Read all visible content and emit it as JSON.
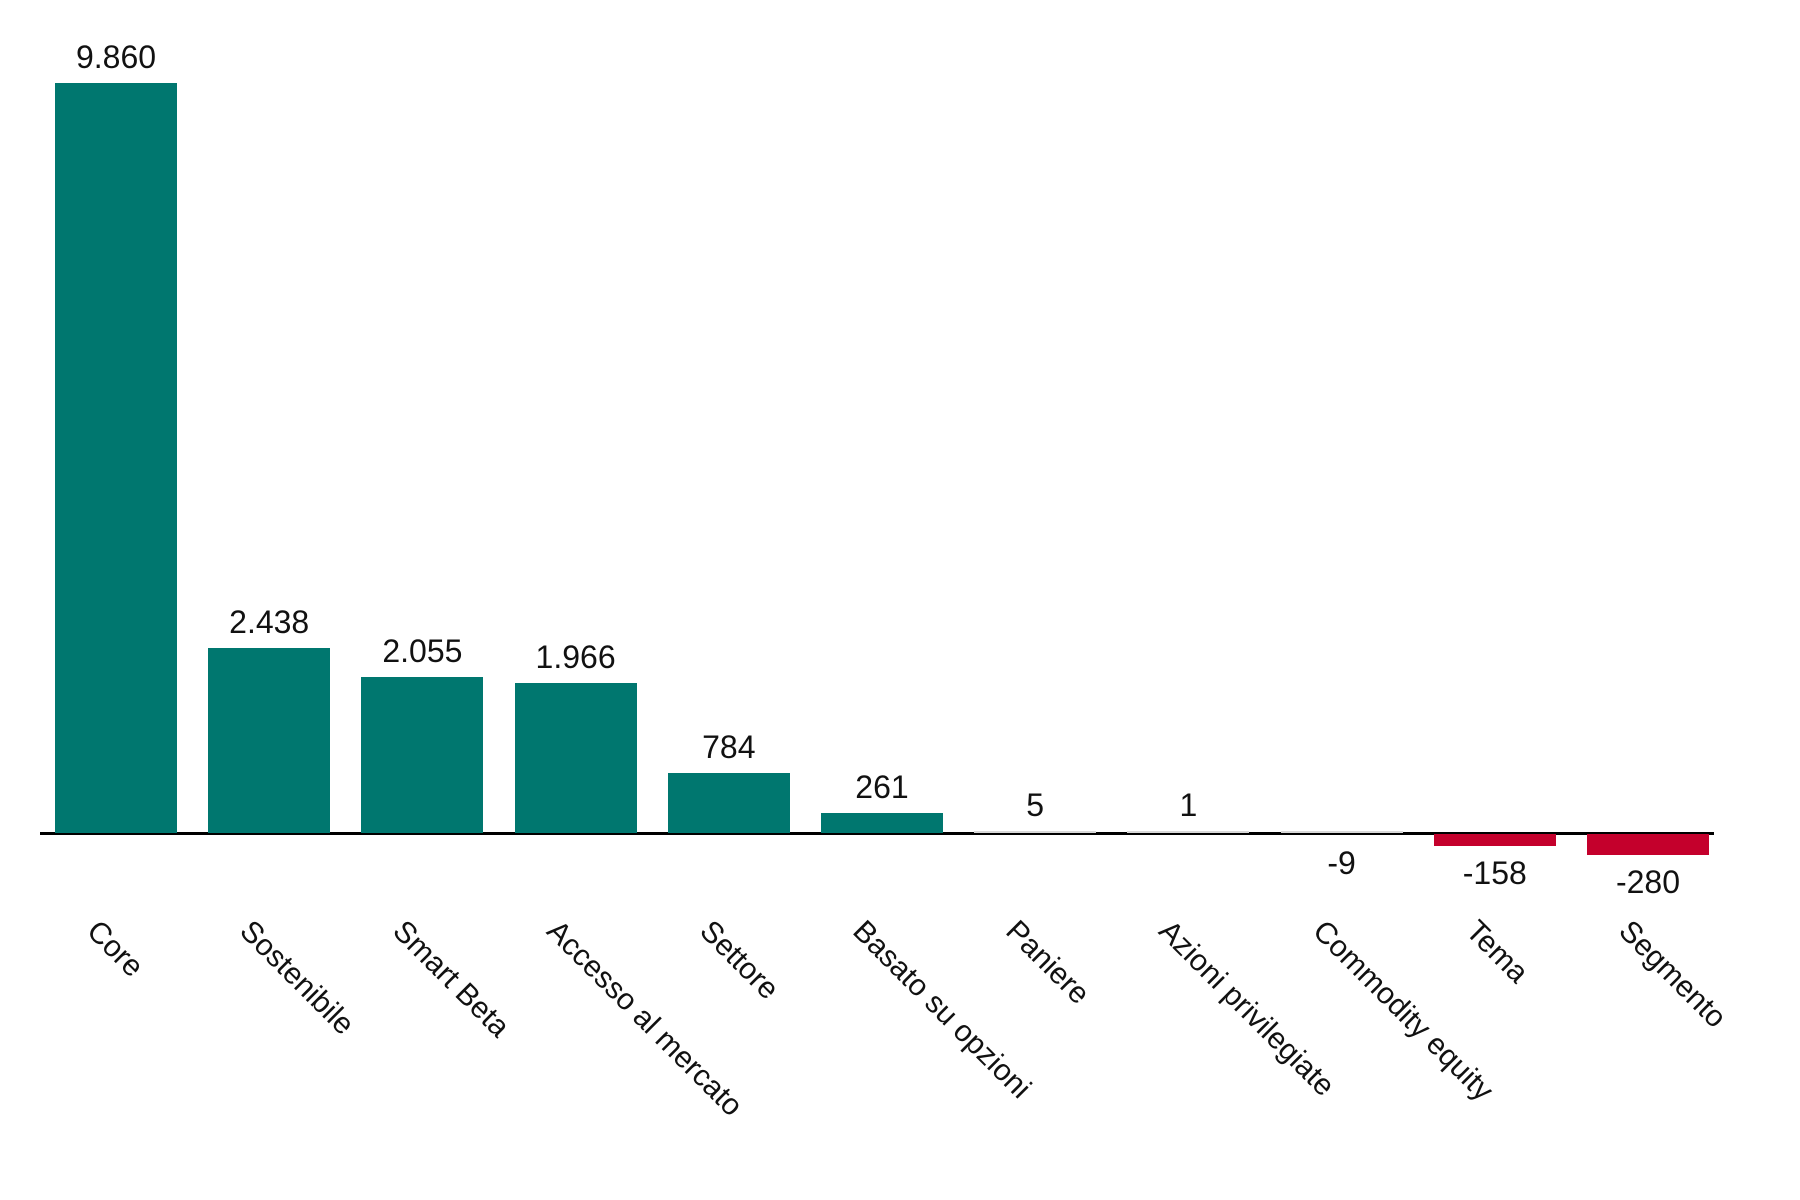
{
  "chart_data": {
    "type": "bar",
    "title": "",
    "xlabel": "",
    "ylabel": "",
    "categories": [
      "Core",
      "Sostenibile",
      "Smart Beta",
      "Accesso al mercato",
      "Settore",
      "Basato su opzioni",
      "Paniere",
      "Azioni privilegiate",
      "Commodity equity",
      "Tema",
      "Segmento"
    ],
    "values": [
      9860,
      2438,
      2055,
      1966,
      784,
      261,
      5,
      1,
      -9,
      -158,
      -280
    ],
    "value_labels": [
      "9.860",
      "2.438",
      "2.055",
      "1.966",
      "784",
      "261",
      "5",
      "1",
      "-9",
      "-158",
      "-280"
    ],
    "colors": {
      "positive": "#00776f",
      "negative": "#c4002c",
      "axis": "#000000"
    },
    "grid": false,
    "legend": null,
    "ylim": [
      -280,
      9860
    ]
  }
}
